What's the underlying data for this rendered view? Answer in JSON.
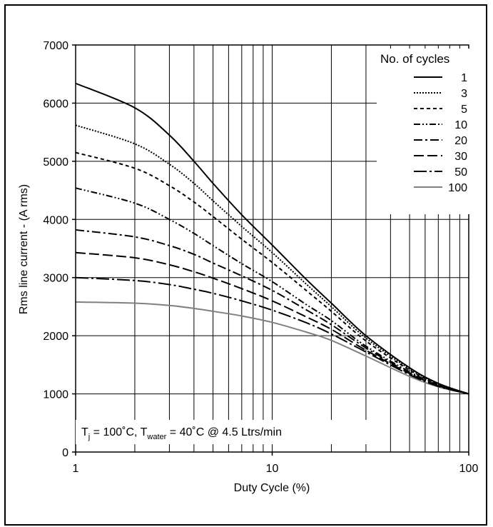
{
  "chart_data": {
    "type": "line",
    "xlabel": "Duty Cycle (%)",
    "ylabel": "Rms line current - (A rms)",
    "xscale": "log",
    "xlim": [
      1,
      100
    ],
    "ylim": [
      0,
      7000
    ],
    "x_ticks": [
      1,
      10,
      100
    ],
    "y_ticks": [
      0,
      1000,
      2000,
      3000,
      4000,
      5000,
      6000,
      7000
    ],
    "grid": true,
    "legend_title": "No. of cycles",
    "legend_position": "top-right",
    "annotation": {
      "prefix": "T",
      "sub1": "j",
      "mid": " = 100˚C, T",
      "sub2": "water",
      "suffix": " = 40˚C @ 4.5 Ltrs/min"
    },
    "x": [
      1,
      2,
      3,
      4,
      5,
      7,
      10,
      15,
      20,
      30,
      50,
      70,
      100
    ],
    "series": [
      {
        "name": "1",
        "style": "solid",
        "color": "#000000",
        "values": [
          6340,
          5920,
          5450,
          5000,
          4620,
          4080,
          3560,
          2960,
          2560,
          2000,
          1450,
          1180,
          1000
        ]
      },
      {
        "name": "3",
        "style": "dotted",
        "color": "#000000",
        "values": [
          5620,
          5300,
          4950,
          4620,
          4320,
          3880,
          3430,
          2880,
          2500,
          1960,
          1430,
          1170,
          1000
        ]
      },
      {
        "name": "5",
        "style": "short-dash",
        "color": "#000000",
        "values": [
          5150,
          4880,
          4580,
          4300,
          4050,
          3660,
          3260,
          2770,
          2420,
          1910,
          1410,
          1160,
          1000
        ]
      },
      {
        "name": "10",
        "style": "dash-dot-dot",
        "color": "#000000",
        "values": [
          4540,
          4280,
          4000,
          3760,
          3550,
          3240,
          2930,
          2530,
          2260,
          1820,
          1380,
          1150,
          1000
        ]
      },
      {
        "name": "20",
        "style": "dash-dot",
        "color": "#000000",
        "values": [
          3820,
          3700,
          3550,
          3400,
          3250,
          3030,
          2780,
          2440,
          2190,
          1790,
          1360,
          1140,
          1000
        ]
      },
      {
        "name": "30",
        "style": "long-dash",
        "color": "#000000",
        "values": [
          3430,
          3340,
          3220,
          3100,
          2990,
          2810,
          2600,
          2320,
          2110,
          1750,
          1350,
          1140,
          1000
        ]
      },
      {
        "name": "50",
        "style": "long-dash-dot",
        "color": "#000000",
        "values": [
          3000,
          2950,
          2880,
          2800,
          2730,
          2600,
          2440,
          2220,
          2030,
          1720,
          1330,
          1130,
          1000
        ]
      },
      {
        "name": "100",
        "style": "solid",
        "color": "#808080",
        "values": [
          2580,
          2560,
          2520,
          2470,
          2420,
          2340,
          2230,
          2060,
          1920,
          1650,
          1300,
          1120,
          1000
        ]
      }
    ]
  }
}
